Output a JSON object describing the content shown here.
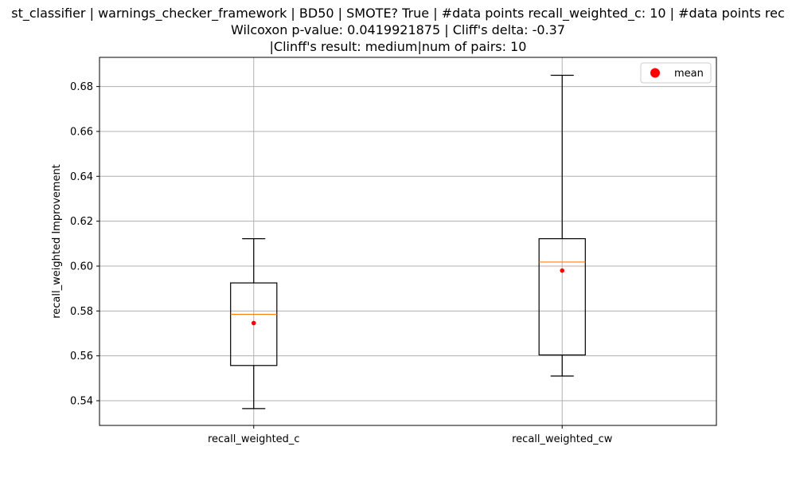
{
  "chart_data": {
    "type": "box",
    "title_lines": [
      "st_classifier | warnings_checker_framework | BD50 | SMOTE? True | #data points recall_weighted_c: 10 | #data points rec",
      "Wilcoxon p-value: 0.0419921875 | Cliff's delta: -0.37",
      "|Clinff's result: medium|num of pairs: 10"
    ],
    "ylabel": "recall_weighted Improvement",
    "xlabel": "",
    "ylim": [
      0.529,
      0.693
    ],
    "yticks": [
      0.54,
      0.56,
      0.58,
      0.6,
      0.62,
      0.64,
      0.66,
      0.68
    ],
    "ytick_labels": [
      "0.54",
      "0.56",
      "0.58",
      "0.60",
      "0.62",
      "0.64",
      "0.66",
      "0.68"
    ],
    "grid": true,
    "legend": {
      "position": "top-right",
      "entries": [
        {
          "label": "mean",
          "color": "#ff0000"
        }
      ]
    },
    "categories": [
      "recall_weighted_c",
      "recall_weighted_cw"
    ],
    "boxes": [
      {
        "name": "recall_weighted_c",
        "whisker_low": 0.5365,
        "q1": 0.5557,
        "median": 0.5785,
        "q3": 0.5925,
        "whisker_high": 0.6122,
        "mean": 0.5746
      },
      {
        "name": "recall_weighted_cw",
        "whisker_low": 0.551,
        "q1": 0.5604,
        "median": 0.6018,
        "q3": 0.6122,
        "whisker_high": 0.685,
        "mean": 0.598
      }
    ],
    "colors": {
      "box": "#000000",
      "median": "#ff7f0e",
      "mean": "#ff0000",
      "grid": "#b0b0b0"
    }
  }
}
